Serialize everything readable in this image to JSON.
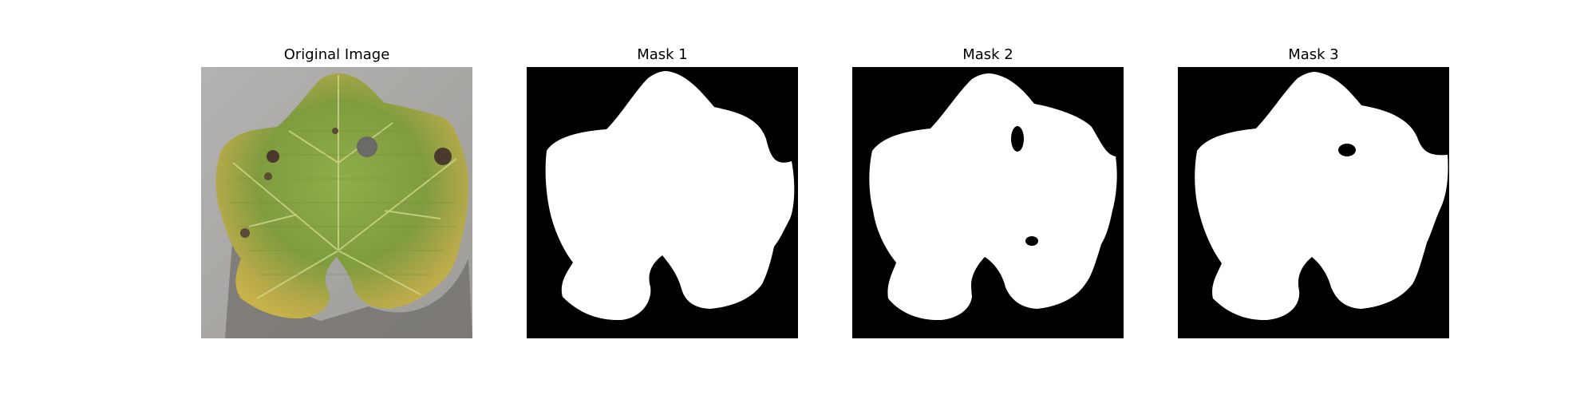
{
  "figure": {
    "panels": [
      {
        "title": "Original Image",
        "kind": "photo",
        "subject": "leaf-photo"
      },
      {
        "title": "Mask 1",
        "kind": "mask"
      },
      {
        "title": "Mask 2",
        "kind": "mask"
      },
      {
        "title": "Mask 3",
        "kind": "mask"
      }
    ],
    "colors": {
      "mask_foreground": "#ffffff",
      "mask_background": "#000000",
      "leaf": "#8fa84a",
      "leaf_dark": "#5f7a2e",
      "leaf_yellow": "#c9b24a",
      "background_gray": "#a9a7a5",
      "lesion": "#4a3a2e"
    }
  }
}
